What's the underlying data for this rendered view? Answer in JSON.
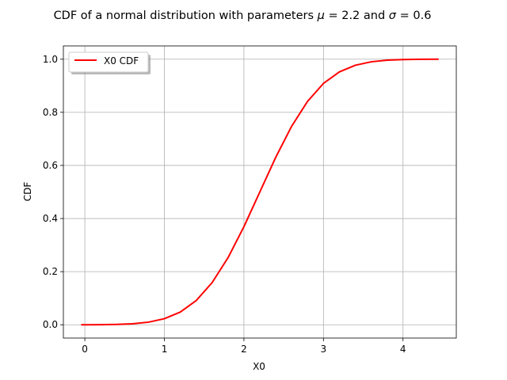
{
  "chart_data": {
    "type": "line",
    "title": "CDF of a normal distribution with parameters μ = 2.2 and σ = 0.6",
    "title_parts": {
      "prefix": "CDF of a normal distribution with parameters ",
      "mu_symbol": "μ",
      "mu_eq": " = 2.2 and ",
      "sigma_symbol": "σ",
      "sigma_eq": " = 0.6"
    },
    "xlabel": "X0",
    "ylabel": "CDF",
    "xlim": [
      -0.27,
      4.67
    ],
    "ylim": [
      -0.05,
      1.05
    ],
    "x_ticks": [
      0,
      1,
      2,
      3,
      4
    ],
    "y_ticks": [
      0.0,
      0.2,
      0.4,
      0.6,
      0.8,
      1.0
    ],
    "x_tick_labels": [
      "0",
      "1",
      "2",
      "3",
      "4"
    ],
    "y_tick_labels": [
      "0.0",
      "0.2",
      "0.4",
      "0.6",
      "0.8",
      "1.0"
    ],
    "grid": true,
    "legend_position": "top-left",
    "distribution": {
      "family": "normal",
      "mu": 2.2,
      "sigma": 0.6
    },
    "series": [
      {
        "name": "X0 CDF",
        "color": "#ff0000",
        "x": [
          -0.04,
          0.0,
          0.2,
          0.4,
          0.6,
          0.8,
          1.0,
          1.2,
          1.4,
          1.6,
          1.8,
          2.0,
          2.2,
          2.4,
          2.6,
          2.8,
          3.0,
          3.2,
          3.4,
          3.6,
          3.8,
          4.0,
          4.2,
          4.44
        ],
        "y": [
          0.0001,
          0.0001,
          0.0004,
          0.0013,
          0.0038,
          0.0098,
          0.0228,
          0.0478,
          0.0912,
          0.1587,
          0.2525,
          0.3694,
          0.5,
          0.6306,
          0.7475,
          0.8413,
          0.9088,
          0.9522,
          0.9772,
          0.9902,
          0.9962,
          0.9987,
          0.9996,
          0.9999
        ]
      }
    ]
  }
}
